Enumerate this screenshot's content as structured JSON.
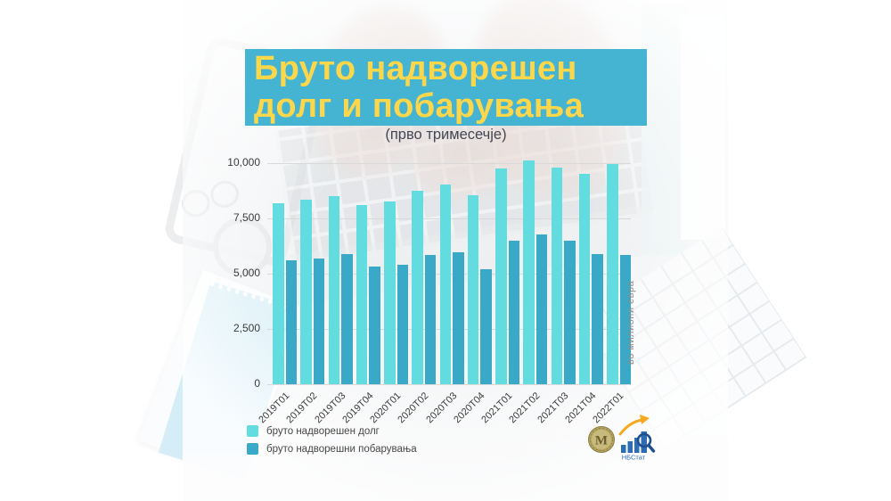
{
  "title": {
    "line1": "Бруто надворешен",
    "line2": "долг и побарувања",
    "subtitle": "(прво тримесечје)"
  },
  "colors": {
    "band": "#45b4d2",
    "title_text": "#fcd64b",
    "subtitle_text": "#434754",
    "debt": "#63dce0",
    "claims": "#3aa9c8",
    "grid": "#d9d9d9",
    "axis_text": "#3b3b3b",
    "legend_text": "#474747",
    "unit_text": "#8b8b8b",
    "logo_blue": "#2e6db4",
    "logo_orange": "#f6a821",
    "coin_gold": "#b4a55f"
  },
  "chart_data": {
    "type": "bar",
    "categories": [
      "2019Т01",
      "2019Т02",
      "2019Т03",
      "2019Т04",
      "2020Т01",
      "2020Т02",
      "2020Т03",
      "2020Т04",
      "2021Т01",
      "2021Т02",
      "2021Т03",
      "2021Т04",
      "2022Т01"
    ],
    "series": [
      {
        "name": "бруто надворешен долг",
        "color_key": "debt",
        "values": [
          8200,
          8350,
          8530,
          8100,
          8250,
          8750,
          9020,
          8550,
          9750,
          10130,
          9820,
          9520,
          9950
        ]
      },
      {
        "name": "бруто надворешни побарувања",
        "color_key": "claims",
        "values": [
          5600,
          5700,
          5900,
          5310,
          5390,
          5850,
          5950,
          5210,
          6490,
          6760,
          6490,
          5890,
          5850
        ]
      }
    ],
    "title": "Бруто надворешен долг и побарувања",
    "subtitle": "(прво тримесечје)",
    "ylabel": "во милиони евра",
    "xlabel": "",
    "ylim": [
      0,
      10000
    ],
    "yticks": [
      0,
      2500,
      5000,
      7500,
      10000
    ],
    "ytick_labels": [
      "0",
      "2,500",
      "5,000",
      "7,500",
      "10,000"
    ],
    "grid": true,
    "legend_position": "bottom-left"
  },
  "logo": {
    "nbstat_label": "НБСтат",
    "coin_letter": "М"
  }
}
